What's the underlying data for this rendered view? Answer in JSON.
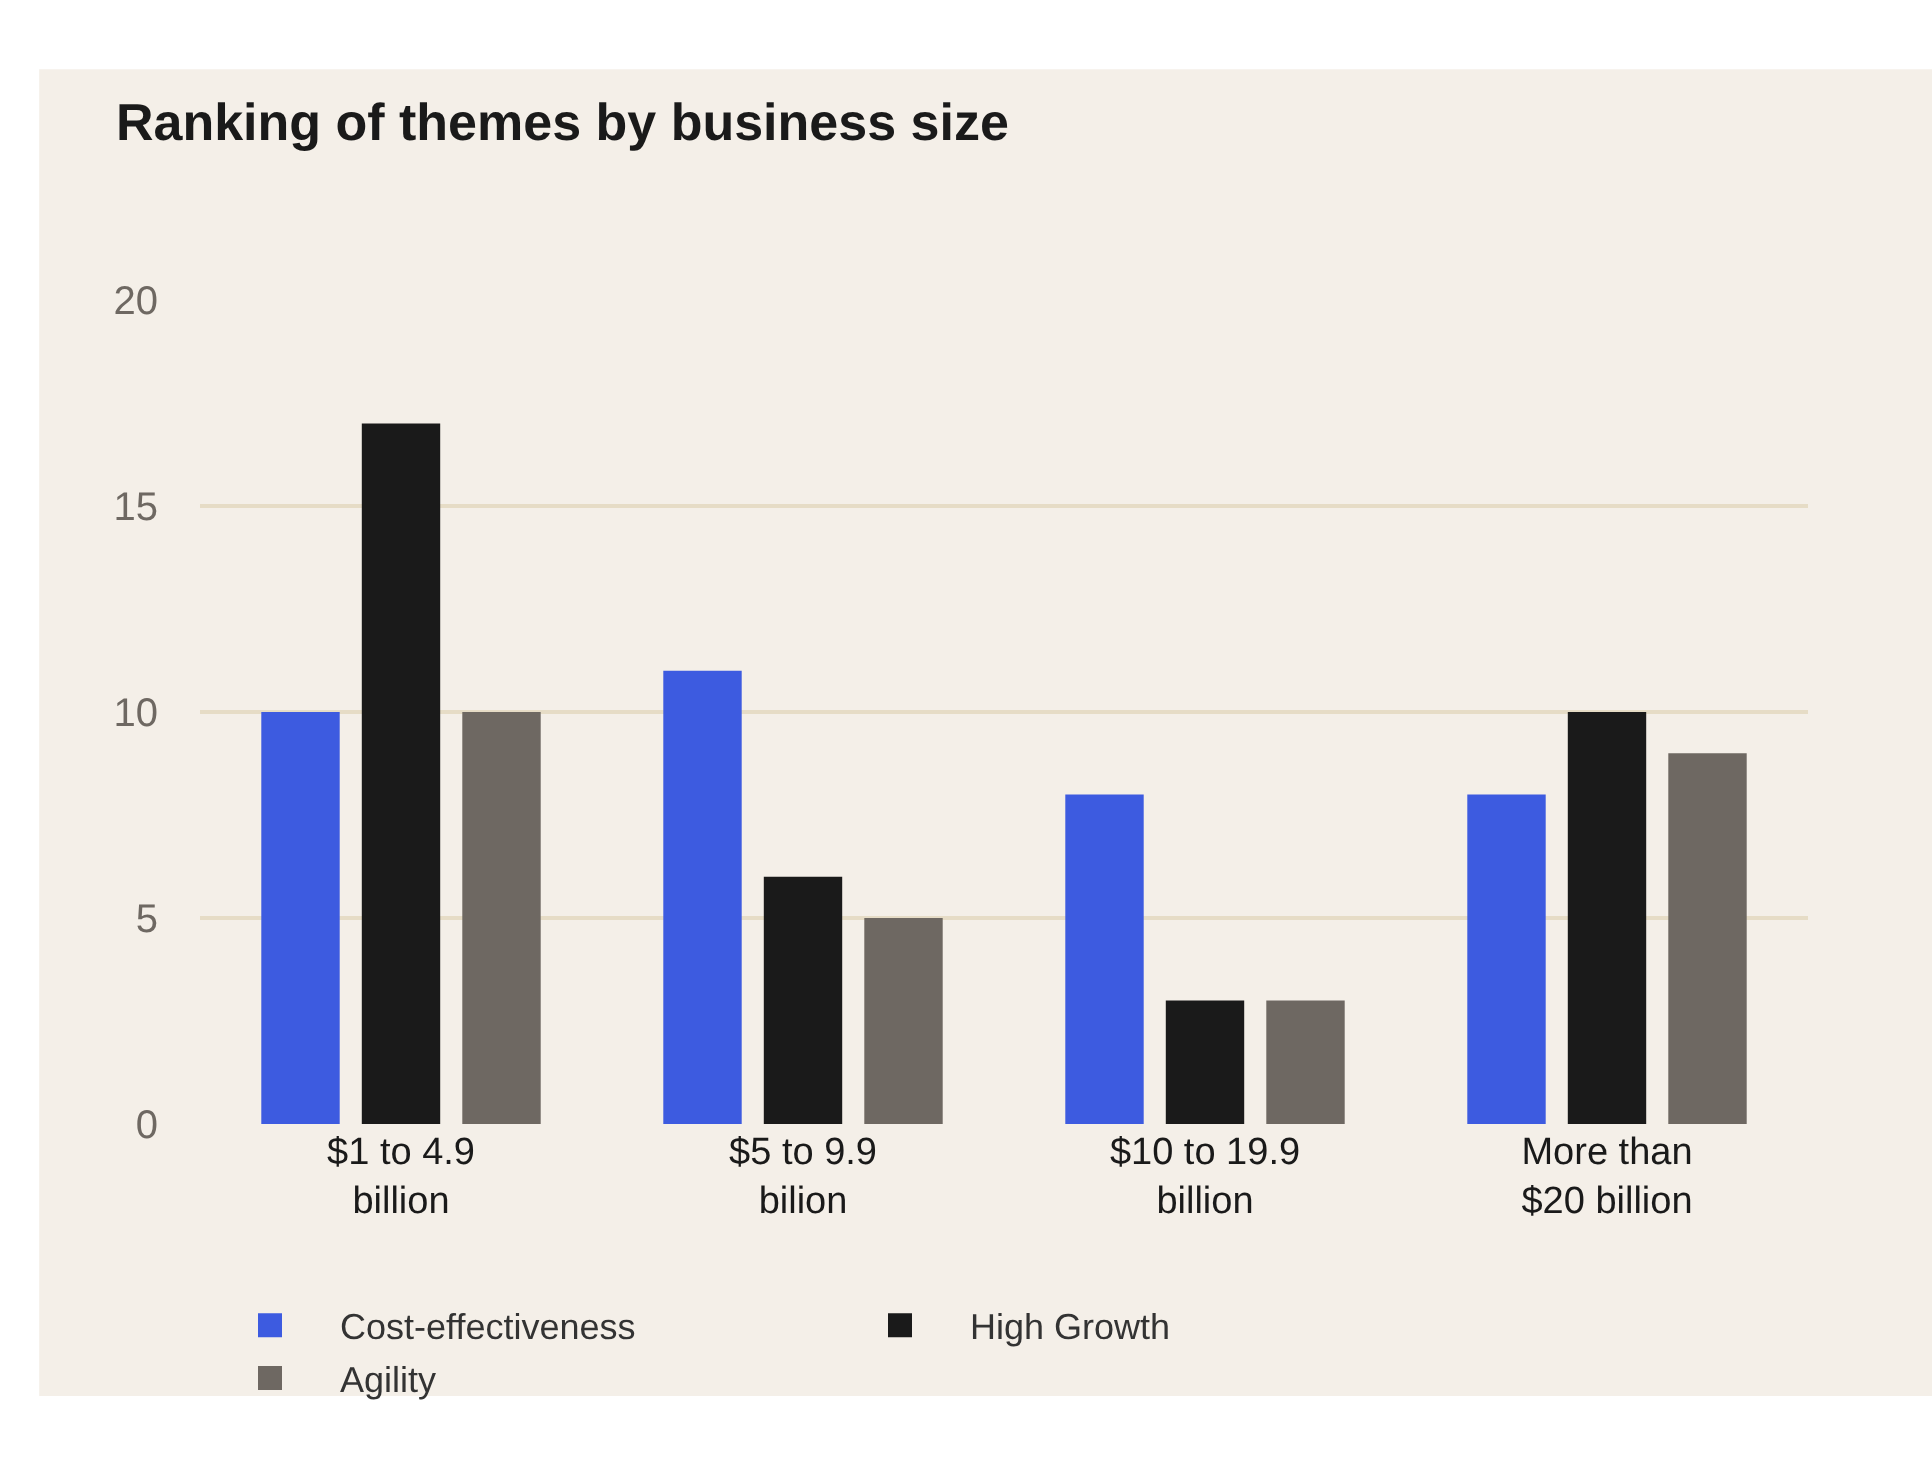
{
  "chart_data": {
    "type": "bar",
    "title": "Ranking of themes by business size",
    "categories": [
      "$1 to 4.9\nbillion",
      "$5 to 9.9\nbilion",
      "$10 to 19.9\nbillion",
      "More than\n$20 billion"
    ],
    "series": [
      {
        "name": "Cost-effectiveness",
        "color": "#3d5be0",
        "values": [
          10,
          11,
          8,
          8
        ]
      },
      {
        "name": "High Growth",
        "color": "#1a1a1a",
        "values": [
          17,
          6,
          3,
          10
        ]
      },
      {
        "name": "Agility",
        "color": "#6e6862",
        "values": [
          10,
          5,
          3,
          9
        ]
      }
    ],
    "ylim": [
      0,
      20
    ],
    "yticks": [
      0,
      5,
      10,
      15,
      20
    ],
    "grid": "y",
    "legend": "bottom left"
  }
}
